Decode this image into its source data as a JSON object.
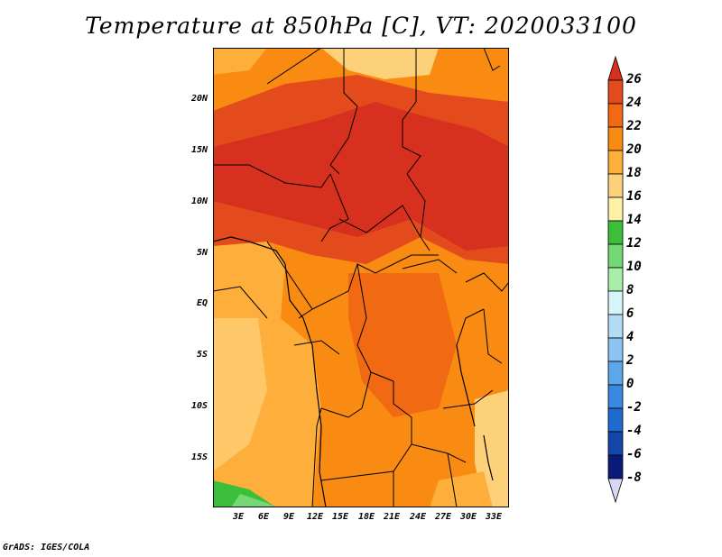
{
  "map": {
    "title": "Temperature at 850hPa [C], VT: 2020033100",
    "lat_ticks": [
      "20N",
      "15N",
      "10N",
      "5N",
      "EQ",
      "5S",
      "10S",
      "15S"
    ],
    "lon_ticks": [
      "3E",
      "6E",
      "9E",
      "12E",
      "15E",
      "18E",
      "21E",
      "24E",
      "27E",
      "30E",
      "33E"
    ]
  },
  "colorbar": {
    "labels": [
      "26",
      "24",
      "22",
      "20",
      "18",
      "16",
      "14",
      "12",
      "10",
      "8",
      "6",
      "4",
      "2",
      "0",
      "-2",
      "-4",
      "-6",
      "-8"
    ],
    "colors": [
      "#d7301f",
      "#e34a1c",
      "#f16913",
      "#f98b12",
      "#fdae3b",
      "#fdd17a",
      "#fef0a6",
      "#3bbf3b",
      "#74d974",
      "#a8eda8",
      "#d6f5fa",
      "#b3dcf5",
      "#8cc3f0",
      "#5ea6eb",
      "#3a89e0",
      "#1f6acf",
      "#1246a8",
      "#0a1a7a",
      "#d8d8f5"
    ]
  },
  "credit": "GrADS: IGES/COLA"
}
